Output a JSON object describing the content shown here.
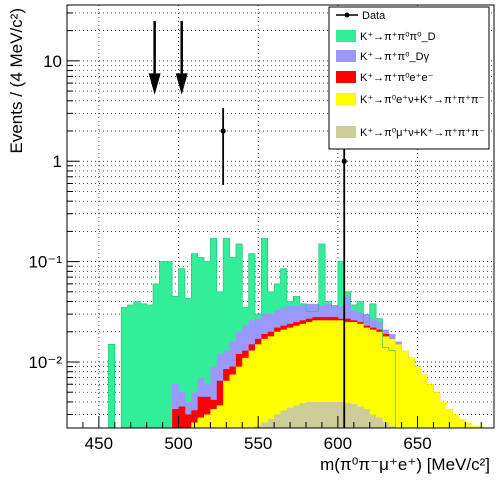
{
  "chart_data": {
    "type": "histogram-stacked-log",
    "xlabel": "m(π⁰π⁻μ⁺e⁺) [MeV/c²]",
    "ylabel": "Events / (4 MeV/c²)",
    "xlim": [
      430,
      698
    ],
    "ylim": [
      0.0022,
      36
    ],
    "log_y": true,
    "grid": true,
    "bin_width": 4,
    "x_ticks": [
      450,
      500,
      550,
      600,
      650
    ],
    "x_tick_labels": [
      "450",
      "500",
      "550",
      "600",
      "650"
    ],
    "y_ticks": [
      0.01,
      0.1,
      1,
      10
    ],
    "y_tick_labels": [
      "10⁻²",
      "10⁻¹",
      "1",
      "10"
    ],
    "legend_position": "top-right",
    "legend": {
      "data": "Data",
      "k3pi0": "K⁺→π⁺π⁰π⁰_D",
      "pipi0g": "K⁺→π⁺π⁰_Dγ",
      "pipi0ee": "K⁺→π⁺π⁰e⁺e⁻",
      "ke4": "K⁺→π⁰e⁺ν+K⁺→π⁺π⁺π⁻",
      "kmu4": "K⁺→π⁰μ⁺ν+K⁺→π⁺π⁺π⁻"
    },
    "colors": {
      "k3pi0": "#33ee99",
      "pipi0g": "#9999ff",
      "pipi0ee": "#ff0000",
      "ke4": "#ffff00",
      "kmu4": "#cccc99",
      "data": "#000000"
    },
    "arrows_x": [
      485,
      502
    ],
    "data_points": [
      {
        "x": 528,
        "y": 2,
        "y_low": 0.58,
        "y_high": 3.4
      },
      {
        "x": 604,
        "y": 1,
        "y_low": 0.0022,
        "y_high": 2.3
      }
    ],
    "stack_top": {
      "x": [
        458,
        462,
        466,
        470,
        474,
        478,
        482,
        486,
        490,
        494,
        498,
        502,
        506,
        510,
        514,
        518,
        522,
        526,
        530,
        534,
        538,
        542,
        546,
        550,
        554,
        558,
        562,
        566,
        570,
        574,
        578,
        582,
        586,
        590,
        594,
        598,
        602,
        606,
        610,
        614,
        618,
        622,
        626,
        630,
        634,
        638,
        642,
        646,
        650,
        654,
        658,
        662,
        666,
        670,
        674,
        678,
        682,
        686,
        690,
        694
      ],
      "values": [
        0.015,
        0,
        0.035,
        0.037,
        0.04,
        0.038,
        0.037,
        0.06,
        0.1,
        0.1,
        0.045,
        0.085,
        0.043,
        0.12,
        0.11,
        0.1,
        0.17,
        0.05,
        0.17,
        0.11,
        0.15,
        0.035,
        0.12,
        0.03,
        0.17,
        0.05,
        0.06,
        0.085,
        0.04,
        0.045,
        0.038,
        0.032,
        0.032,
        0.15,
        0.04,
        0.035,
        0.1,
        0.05,
        0.037,
        0.04,
        0.025,
        0.038,
        0.027,
        0.014,
        0.013,
        0,
        0,
        0,
        0,
        0,
        0,
        0,
        0,
        0,
        0,
        0,
        0,
        0,
        0,
        0
      ]
    },
    "pipi0g_top": {
      "x": [
        498,
        502,
        506,
        510,
        514,
        518,
        522,
        526,
        530,
        534,
        538,
        542,
        546,
        550,
        554,
        558,
        562,
        566,
        570,
        574,
        578,
        582,
        586,
        590,
        594,
        598,
        602,
        606,
        610,
        614,
        618,
        622,
        626,
        630,
        634,
        638,
        642,
        646,
        650,
        654,
        658,
        662,
        666,
        670,
        674,
        678,
        682,
        686,
        690,
        694
      ],
      "values": [
        0.006,
        0.005,
        0.004,
        0.005,
        0.007,
        0.006,
        0.009,
        0.012,
        0.013,
        0.016,
        0.02,
        0.023,
        0.026,
        0.027,
        0.03,
        0.03,
        0.033,
        0.035,
        0.036,
        0.036,
        0.037,
        0.038,
        0.038,
        0.037,
        0.038,
        0.037,
        0.036,
        0.045,
        0.033,
        0.031,
        0.03,
        0.027,
        0.025,
        0.021,
        0.019,
        0.016,
        0.013,
        0.011,
        0.009,
        0.007,
        0.0055,
        0.004,
        0.0035,
        0.003,
        0.0025,
        0,
        0,
        0,
        0,
        0
      ]
    },
    "pipi0ee_top": {
      "x": [
        498,
        502,
        506,
        510,
        514,
        518,
        522,
        526,
        530,
        534,
        538,
        542,
        546,
        550,
        554,
        558,
        562,
        566,
        570,
        574,
        578,
        582,
        586,
        590,
        594,
        598,
        602,
        606,
        610,
        614,
        618,
        622,
        626,
        630,
        634,
        638,
        642,
        646,
        650,
        654,
        658,
        662,
        666,
        670,
        674,
        678,
        682,
        686,
        690,
        694
      ],
      "values": [
        0.0034,
        0.0036,
        0.003,
        0.0033,
        0.0045,
        0.0045,
        0.0042,
        0.0065,
        0.0085,
        0.009,
        0.012,
        0.013,
        0.015,
        0.017,
        0.019,
        0.02,
        0.022,
        0.023,
        0.024,
        0.025,
        0.026,
        0.027,
        0.028,
        0.028,
        0.028,
        0.028,
        0.027,
        0.027,
        0.026,
        0.025,
        0.023,
        0.022,
        0.021,
        0.019,
        0.017,
        0.015,
        0.013,
        0.011,
        0.009,
        0.0075,
        0.006,
        0.005,
        0.004,
        0.0034,
        0.0028,
        0,
        0,
        0,
        0,
        0
      ]
    },
    "ke4_top": {
      "x": [
        510,
        514,
        518,
        522,
        526,
        530,
        534,
        538,
        542,
        546,
        550,
        554,
        558,
        562,
        566,
        570,
        574,
        578,
        582,
        586,
        590,
        594,
        598,
        602,
        606,
        610,
        614,
        618,
        622,
        626,
        630,
        634,
        638,
        642,
        646,
        650,
        654,
        658,
        662,
        666,
        670,
        674,
        678,
        682,
        686,
        690,
        694
      ],
      "values": [
        0.0025,
        0.0028,
        0.003,
        0.0034,
        0.0037,
        0.0065,
        0.0075,
        0.009,
        0.011,
        0.013,
        0.015,
        0.017,
        0.018,
        0.02,
        0.021,
        0.022,
        0.023,
        0.024,
        0.025,
        0.026,
        0.026,
        0.026,
        0.026,
        0.026,
        0.025,
        0.025,
        0.024,
        0.022,
        0.021,
        0.02,
        0.018,
        0.017,
        0.015,
        0.013,
        0.011,
        0.009,
        0.0075,
        0.006,
        0.005,
        0.004,
        0.0034,
        0.003,
        0.0027,
        0.0025,
        0.0023,
        0.0023,
        0.0022
      ]
    },
    "kmu4_top": {
      "x": [
        550,
        554,
        558,
        562,
        566,
        570,
        574,
        578,
        582,
        586,
        590,
        594,
        598,
        602,
        606,
        610,
        614,
        618,
        622,
        626,
        630,
        634,
        638
      ],
      "values": [
        0.0023,
        0.0025,
        0.0027,
        0.003,
        0.0033,
        0.0035,
        0.0037,
        0.0039,
        0.004,
        0.004,
        0.004,
        0.004,
        0.004,
        0.004,
        0.0039,
        0.0038,
        0.0036,
        0.0034,
        0.003,
        0.0028,
        0.0025,
        0.0023,
        0.0022
      ]
    }
  }
}
